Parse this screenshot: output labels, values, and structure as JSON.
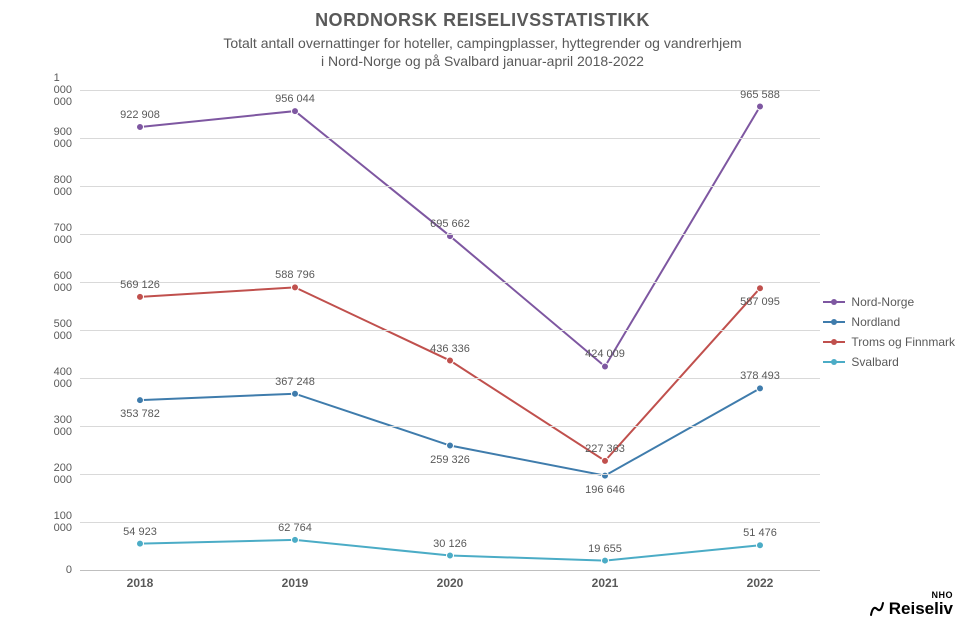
{
  "title": "NORDNORSK REISELIVSSTATISTIKK",
  "subtitle_line1": "Totalt antall overnattinger for hoteller, campingplasser, hyttegrender og vandrerhjem",
  "subtitle_line2": "i Nord-Norge og på Svalbard januar-april 2018-2022",
  "chart": {
    "type": "line",
    "categories": [
      "2018",
      "2019",
      "2020",
      "2021",
      "2022"
    ],
    "ylim": [
      0,
      1000000
    ],
    "ytick_step": 100000,
    "y_ticks": [
      0,
      100000,
      200000,
      300000,
      400000,
      500000,
      600000,
      700000,
      800000,
      900000,
      1000000
    ],
    "y_tick_labels": [
      "0",
      "100 000",
      "200 000",
      "300 000",
      "400 000",
      "500 000",
      "600 000",
      "700 000",
      "800 000",
      "900 000",
      "1 000 000"
    ],
    "grid_color": "#d9d9d9",
    "axis_color": "#bfbfbf",
    "background_color": "#ffffff",
    "title_fontsize": 18,
    "subtitle_fontsize": 14,
    "label_fontsize": 11,
    "tick_fontsize": 11,
    "line_width": 2,
    "marker_size": 5,
    "series": [
      {
        "name": "Nord-Norge",
        "color": "#7e57a1",
        "values": [
          922908,
          956044,
          695662,
          424009,
          965588
        ],
        "labels": [
          "922 908",
          "956 044",
          "695 662",
          "424 009",
          "965 588"
        ],
        "label_pos": [
          "above",
          "above",
          "above",
          "above",
          "above"
        ]
      },
      {
        "name": "Nordland",
        "color": "#3f7cac",
        "values": [
          353782,
          367248,
          259326,
          196646,
          378493
        ],
        "labels": [
          "353 782",
          "367 248",
          "259 326",
          "196 646",
          "378 493"
        ],
        "label_pos": [
          "below",
          "above",
          "below",
          "below",
          "above"
        ]
      },
      {
        "name": "Troms og Finnmark",
        "color": "#c0504d",
        "values": [
          569126,
          588796,
          436336,
          227363,
          587095
        ],
        "labels": [
          "569 126",
          "588 796",
          "436 336",
          "227 363",
          "587 095"
        ],
        "label_pos": [
          "above",
          "above",
          "above",
          "above",
          "below"
        ]
      },
      {
        "name": "Svalbard",
        "color": "#4bacc6",
        "values": [
          54923,
          62764,
          30126,
          19655,
          51476
        ],
        "labels": [
          "54 923",
          "62 764",
          "30 126",
          "19 655",
          "51 476"
        ],
        "label_pos": [
          "above",
          "above",
          "above",
          "above",
          "above"
        ]
      }
    ]
  },
  "legend": {
    "items": [
      {
        "label": "Nord-Norge",
        "color": "#7e57a1"
      },
      {
        "label": "Nordland",
        "color": "#3f7cac"
      },
      {
        "label": "Troms og Finnmark",
        "color": "#c0504d"
      },
      {
        "label": "Svalbard",
        "color": "#4bacc6"
      }
    ]
  },
  "logo": {
    "top": "NHO",
    "bottom": "Reiseliv"
  }
}
